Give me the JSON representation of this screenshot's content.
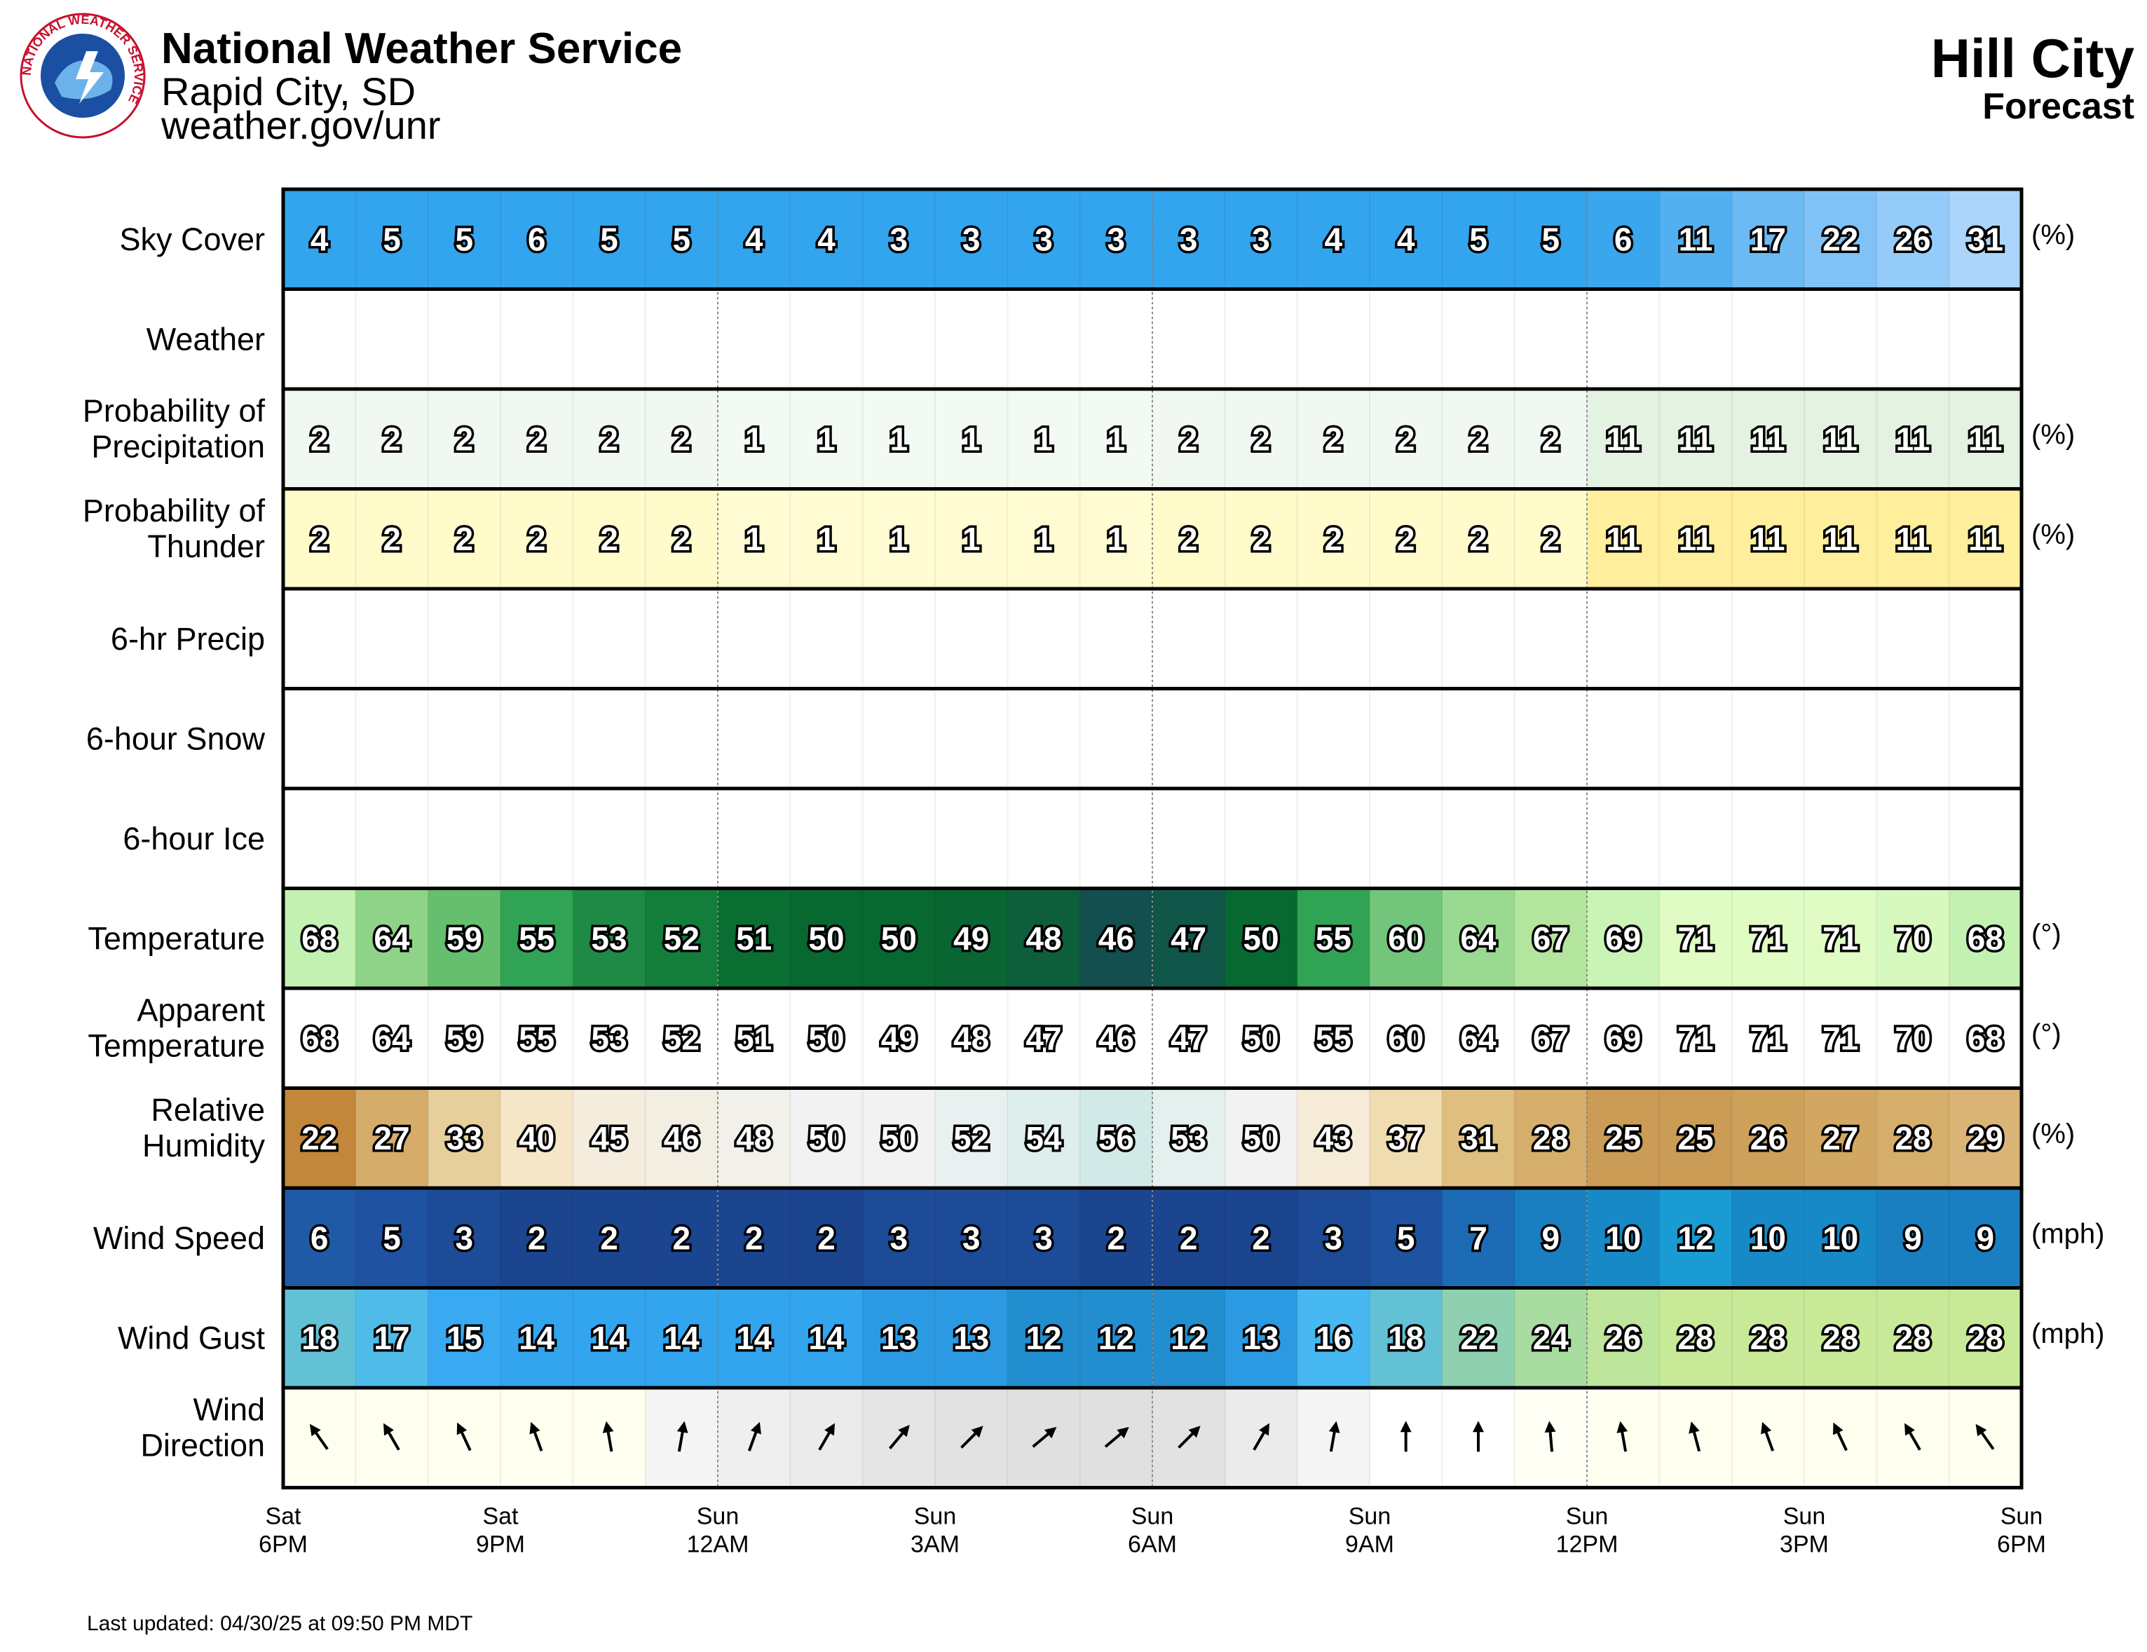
{
  "header": {
    "org_name": "National Weather Service",
    "office": "Rapid City, SD",
    "url": "weather.gov/unr",
    "logo_text": "NATIONAL WEATHER SERVICE",
    "location": "Hill City",
    "subtitle": "Forecast"
  },
  "footer": {
    "last_updated": "Last updated: 04/30/25 at 09:50 PM MDT"
  },
  "chart_data": {
    "type": "table",
    "hours": 24,
    "time_labels": [
      {
        "day": "Sat",
        "time": "6PM"
      },
      {
        "day": "Sat",
        "time": "9PM"
      },
      {
        "day": "Sun",
        "time": "12AM"
      },
      {
        "day": "Sun",
        "time": "3AM"
      },
      {
        "day": "Sun",
        "time": "6AM"
      },
      {
        "day": "Sun",
        "time": "9AM"
      },
      {
        "day": "Sun",
        "time": "12PM"
      },
      {
        "day": "Sun",
        "time": "3PM"
      },
      {
        "day": "Sun",
        "time": "6PM"
      }
    ],
    "rows": [
      {
        "label": [
          "Sky Cover"
        ],
        "unit": "(%)",
        "values": [
          4,
          5,
          5,
          6,
          5,
          5,
          4,
          4,
          3,
          3,
          3,
          3,
          3,
          3,
          4,
          4,
          5,
          5,
          6,
          11,
          17,
          22,
          26,
          31
        ],
        "colors": [
          "#33a4ee",
          "#33a4ee",
          "#33a4ee",
          "#33a4ee",
          "#33a4ee",
          "#33a4ee",
          "#33a4ee",
          "#33a4ee",
          "#33a4ee",
          "#33a4ee",
          "#33a4ee",
          "#33a4ee",
          "#33a4ee",
          "#33a4ee",
          "#33a4ee",
          "#33a4ee",
          "#33a4ee",
          "#33a4ee",
          "#3aa6ee",
          "#52b0f1",
          "#6cb9f3",
          "#80c2f5",
          "#94cbf8",
          "#abd5fb"
        ]
      },
      {
        "label": [
          "Weather"
        ],
        "unit": "",
        "values": [],
        "colors": []
      },
      {
        "label": [
          "Probability of",
          "Precipitation"
        ],
        "unit": "(%)",
        "values": [
          2,
          2,
          2,
          2,
          2,
          2,
          1,
          1,
          1,
          1,
          1,
          1,
          2,
          2,
          2,
          2,
          2,
          2,
          11,
          11,
          11,
          11,
          11,
          11
        ],
        "colors": [
          "#f1f8f1",
          "#f1f8f1",
          "#f1f8f1",
          "#f1f8f1",
          "#f1f8f1",
          "#f1f8f1",
          "#f3f9f3",
          "#f3f9f3",
          "#f3f9f3",
          "#f3f9f3",
          "#f3f9f3",
          "#f3f9f3",
          "#f1f8f1",
          "#f1f8f1",
          "#f1f8f1",
          "#f1f8f1",
          "#f1f8f1",
          "#f1f8f1",
          "#e3f2e1",
          "#e3f2e1",
          "#e3f2e1",
          "#e3f2e1",
          "#e3f2e1",
          "#e3f2e1"
        ]
      },
      {
        "label": [
          "Probability of",
          "Thunder"
        ],
        "unit": "(%)",
        "values": [
          2,
          2,
          2,
          2,
          2,
          2,
          1,
          1,
          1,
          1,
          1,
          1,
          2,
          2,
          2,
          2,
          2,
          2,
          11,
          11,
          11,
          11,
          11,
          11
        ],
        "colors": [
          "#fffbcb",
          "#fffbcb",
          "#fffbcb",
          "#fffbcb",
          "#fffbcb",
          "#fffbcb",
          "#fffcd3",
          "#fffcd3",
          "#fffcd3",
          "#fffcd3",
          "#fffcd3",
          "#fffcd3",
          "#fffbcb",
          "#fffbcb",
          "#fffbcb",
          "#fffbcb",
          "#fffbcb",
          "#fffbcb",
          "#ffef9d",
          "#ffef9d",
          "#ffef9d",
          "#ffef9d",
          "#ffef9d",
          "#ffef9d"
        ]
      },
      {
        "label": [
          "6-hr Precip"
        ],
        "unit": "",
        "values": [],
        "colors": []
      },
      {
        "label": [
          "6-hour Snow"
        ],
        "unit": "",
        "values": [],
        "colors": []
      },
      {
        "label": [
          "6-hour Ice"
        ],
        "unit": "",
        "values": [],
        "colors": []
      },
      {
        "label": [
          "Temperature"
        ],
        "unit": "(°)",
        "values": [
          68,
          64,
          59,
          55,
          53,
          52,
          51,
          50,
          50,
          49,
          48,
          46,
          47,
          50,
          55,
          60,
          64,
          67,
          69,
          71,
          71,
          71,
          70,
          68
        ],
        "colors": [
          "#c2f1b2",
          "#8fd389",
          "#66bf6e",
          "#31a354",
          "#1e8a45",
          "#137d3c",
          "#0a6e32",
          "#07692f",
          "#07692f",
          "#096633",
          "#0d5f3c",
          "#124f4e",
          "#10574a",
          "#07692f",
          "#31a354",
          "#72c57a",
          "#9ad991",
          "#b3e59f",
          "#c9f4b6",
          "#e0fcc4",
          "#e0fcc4",
          "#e0fcc4",
          "#d7f8bf",
          "#c2f1b2"
        ]
      },
      {
        "label": [
          "Apparent",
          "Temperature"
        ],
        "unit": "(°)",
        "values": [
          68,
          64,
          59,
          55,
          53,
          52,
          51,
          50,
          49,
          48,
          47,
          46,
          47,
          50,
          55,
          60,
          64,
          67,
          69,
          71,
          71,
          71,
          70,
          68
        ],
        "colors": [
          "#ffffff",
          "#ffffff",
          "#ffffff",
          "#ffffff",
          "#ffffff",
          "#ffffff",
          "#ffffff",
          "#ffffff",
          "#ffffff",
          "#ffffff",
          "#ffffff",
          "#ffffff",
          "#ffffff",
          "#ffffff",
          "#ffffff",
          "#ffffff",
          "#ffffff",
          "#ffffff",
          "#ffffff",
          "#ffffff",
          "#ffffff",
          "#ffffff",
          "#ffffff",
          "#ffffff"
        ]
      },
      {
        "label": [
          "Relative",
          "Humidity"
        ],
        "unit": "(%)",
        "values": [
          22,
          27,
          33,
          40,
          45,
          46,
          48,
          50,
          50,
          52,
          54,
          56,
          53,
          50,
          43,
          37,
          31,
          28,
          25,
          25,
          26,
          27,
          28,
          29
        ],
        "colors": [
          "#c2873a",
          "#d5ac6a",
          "#e6cf9b",
          "#f4e6c6",
          "#f4edde",
          "#f3eee2",
          "#f2f0ea",
          "#f2f2f2",
          "#f2f2f2",
          "#e9f1f0",
          "#ddeeec",
          "#d2eae7",
          "#e4f0ee",
          "#f2f2f2",
          "#f5ebd7",
          "#efdcb0",
          "#dfbf80",
          "#d6ae6b",
          "#cb9c55",
          "#cb9c55",
          "#cea15b",
          "#d2a762",
          "#d6ae6b",
          "#dab577"
        ]
      },
      {
        "label": [
          "Wind Speed"
        ],
        "unit": "(mph)",
        "values": [
          6,
          5,
          3,
          2,
          2,
          2,
          2,
          2,
          3,
          3,
          3,
          2,
          2,
          2,
          3,
          5,
          7,
          9,
          10,
          12,
          10,
          10,
          9,
          9
        ],
        "colors": [
          "#1f5aa6",
          "#1f52a0",
          "#1e4b97",
          "#1c4590",
          "#1c4590",
          "#1c4590",
          "#1c4590",
          "#1c4590",
          "#1e4b97",
          "#1e4b97",
          "#1e4b97",
          "#1c4590",
          "#1c4590",
          "#1c4590",
          "#1e4b97",
          "#1f52a0",
          "#1d6bb4",
          "#1a7fc0",
          "#1789c6",
          "#1a9bd4",
          "#1789c6",
          "#1789c6",
          "#1a7fc0",
          "#1a7fc0"
        ]
      },
      {
        "label": [
          "Wind Gust"
        ],
        "unit": "(mph)",
        "values": [
          18,
          17,
          15,
          14,
          14,
          14,
          14,
          14,
          13,
          13,
          12,
          12,
          12,
          13,
          16,
          18,
          22,
          24,
          26,
          28,
          28,
          28,
          28,
          28
        ],
        "colors": [
          "#63c1d6",
          "#4fbbe9",
          "#39aaf2",
          "#33a4ee",
          "#33a4ee",
          "#33a4ee",
          "#33a4ee",
          "#33a4ee",
          "#2c9ae2",
          "#2c9ae2",
          "#228ecf",
          "#228ecf",
          "#228ecf",
          "#2c9ae2",
          "#47b8f1",
          "#63c1d6",
          "#8fd0b0",
          "#a9dca1",
          "#bde59b",
          "#c8ea98",
          "#c8ea98",
          "#c8ea98",
          "#c8ea98",
          "#c8ea98"
        ]
      },
      {
        "label": [
          "Wind",
          "Direction"
        ],
        "unit": "",
        "directions": [
          145,
          150,
          155,
          160,
          170,
          190,
          200,
          210,
          220,
          225,
          230,
          230,
          225,
          210,
          190,
          180,
          180,
          175,
          170,
          165,
          160,
          155,
          150,
          145
        ],
        "colors": [
          "#fffff0",
          "#fffff0",
          "#fffff0",
          "#fffff0",
          "#fffff0",
          "#f4f4f4",
          "#efefef",
          "#ebebeb",
          "#e5e5e5",
          "#e2e2e2",
          "#e0e0e0",
          "#e0e0e0",
          "#e2e2e2",
          "#ebebeb",
          "#f4f4f4",
          "#ffffff",
          "#ffffff",
          "#fffff6",
          "#fffff0",
          "#fffff0",
          "#fffff0",
          "#fffff0",
          "#fffff0",
          "#fffff0"
        ]
      }
    ]
  }
}
